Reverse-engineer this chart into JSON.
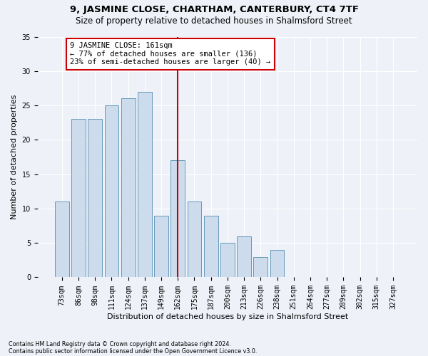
{
  "title1": "9, JASMINE CLOSE, CHARTHAM, CANTERBURY, CT4 7TF",
  "title2": "Size of property relative to detached houses in Shalmsford Street",
  "xlabel": "Distribution of detached houses by size in Shalmsford Street",
  "ylabel": "Number of detached properties",
  "footnote1": "Contains HM Land Registry data © Crown copyright and database right 2024.",
  "footnote2": "Contains public sector information licensed under the Open Government Licence v3.0.",
  "categories": [
    "73sqm",
    "86sqm",
    "98sqm",
    "111sqm",
    "124sqm",
    "137sqm",
    "149sqm",
    "162sqm",
    "175sqm",
    "187sqm",
    "200sqm",
    "213sqm",
    "226sqm",
    "238sqm",
    "251sqm",
    "264sqm",
    "277sqm",
    "289sqm",
    "302sqm",
    "315sqm",
    "327sqm"
  ],
  "values": [
    11,
    23,
    23,
    25,
    26,
    27,
    9,
    17,
    11,
    9,
    5,
    6,
    3,
    4,
    0,
    0,
    0,
    0,
    0,
    0,
    0
  ],
  "bar_color": "#cddcec",
  "bar_edge_color": "#6699bb",
  "reference_line_x": 7,
  "reference_line_color": "#cc0000",
  "ylim": [
    0,
    35
  ],
  "yticks": [
    0,
    5,
    10,
    15,
    20,
    25,
    30,
    35
  ],
  "annotation_title": "9 JASMINE CLOSE: 161sqm",
  "annotation_line1": "← 77% of detached houses are smaller (136)",
  "annotation_line2": "23% of semi-detached houses are larger (40) →",
  "annotation_box_color": "#ffffff",
  "annotation_box_edge_color": "#cc0000",
  "bg_color": "#eef2f8",
  "grid_color": "#ffffff",
  "title1_fontsize": 9.5,
  "title2_fontsize": 8.5,
  "xlabel_fontsize": 8,
  "ylabel_fontsize": 8,
  "tick_fontsize": 7,
  "annotation_fontsize": 7.5,
  "footnote_fontsize": 5.8
}
